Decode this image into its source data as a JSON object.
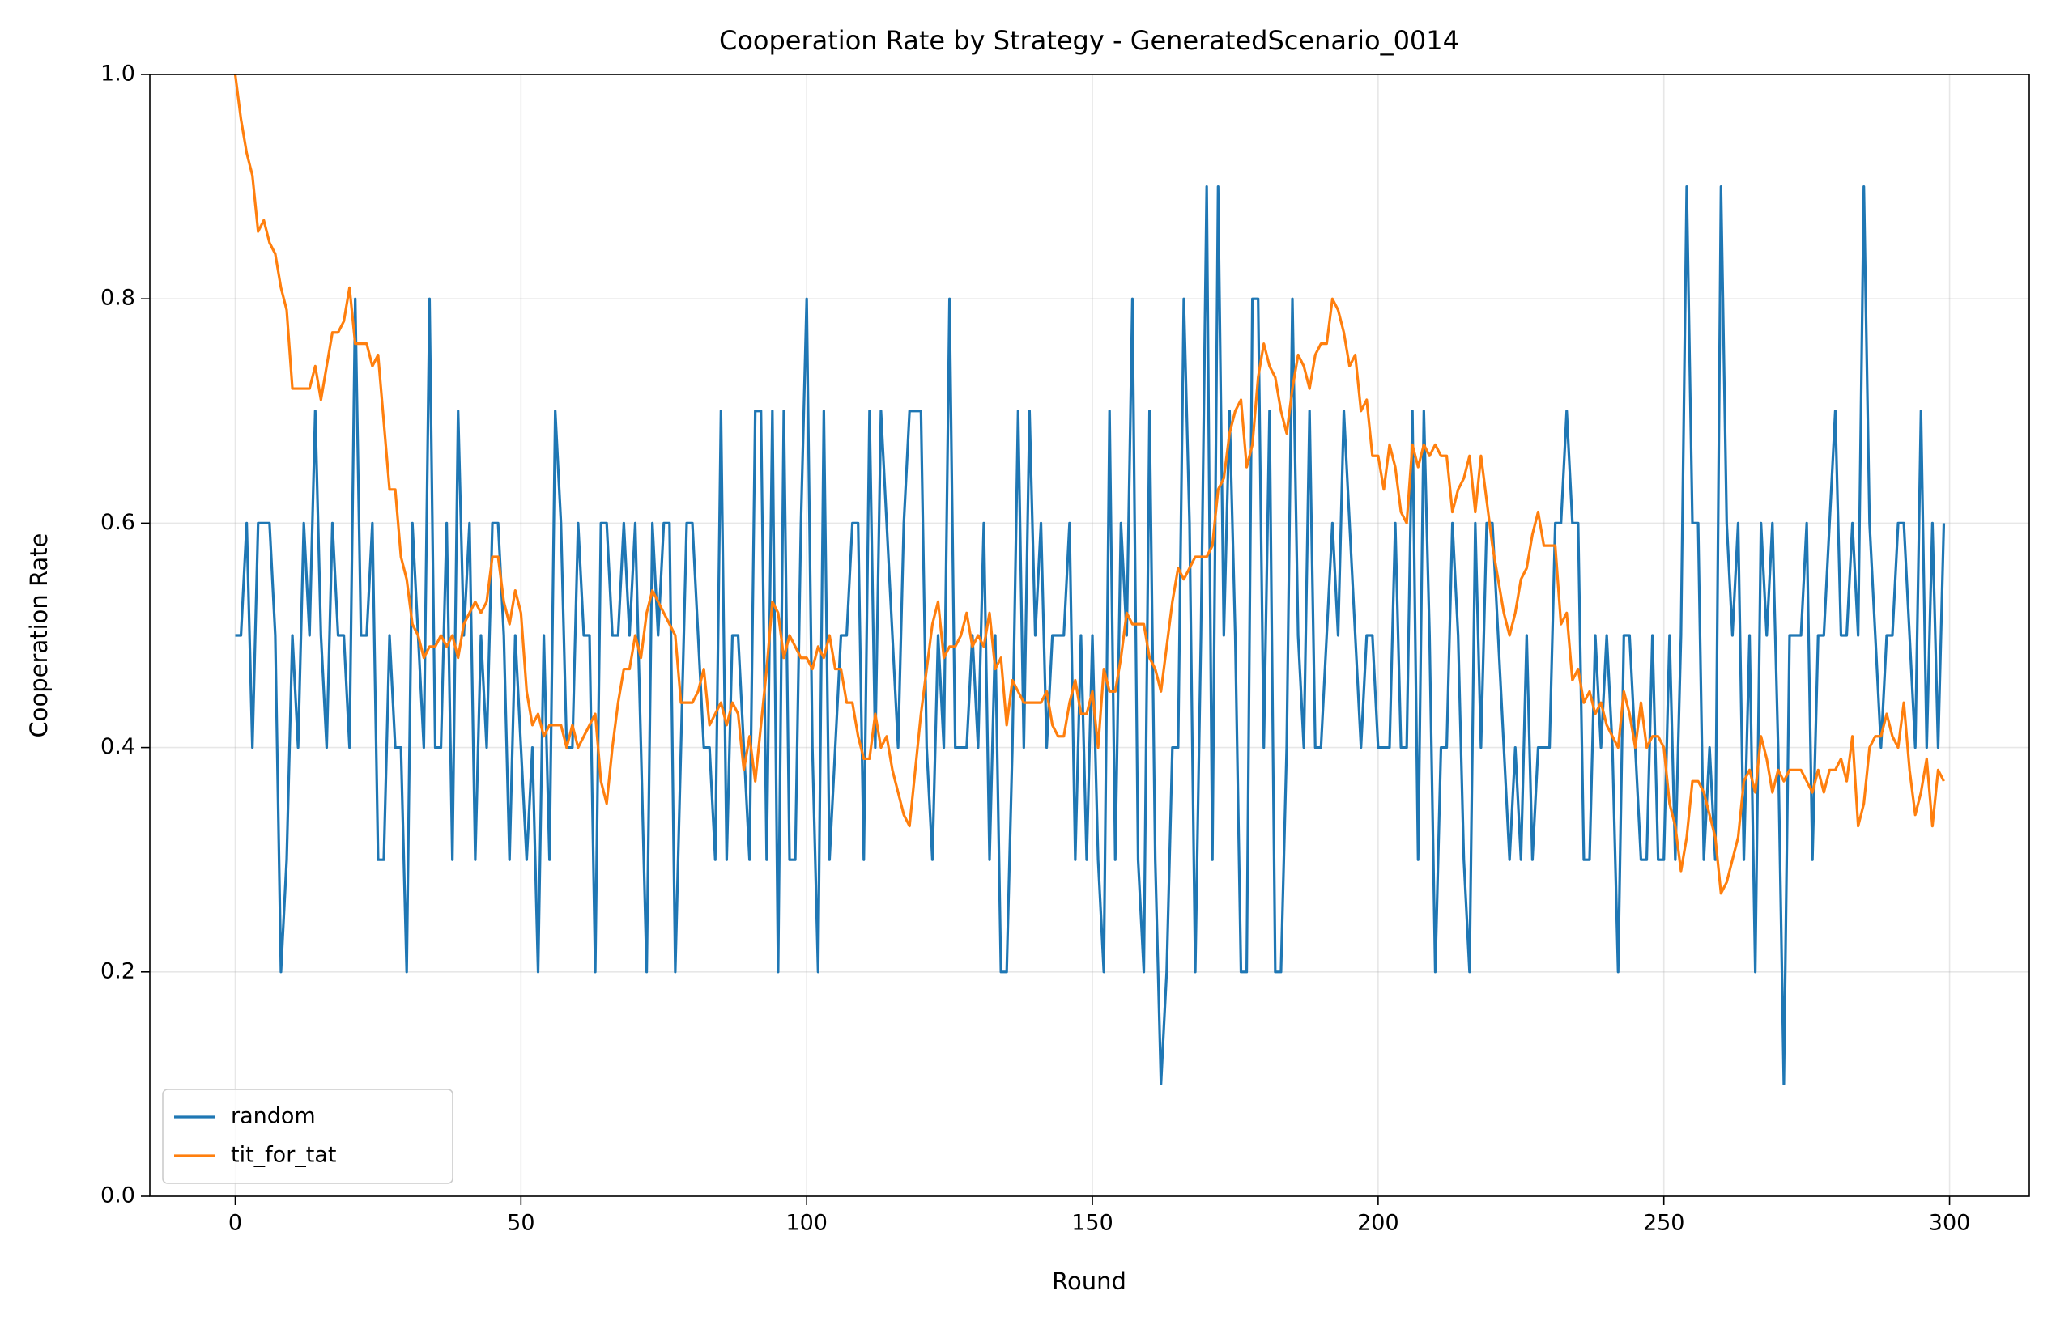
{
  "chart_data": {
    "type": "line",
    "title": "Cooperation Rate by Strategy - GeneratedScenario_0014",
    "x_label": "Round",
    "y_label": "Cooperation Rate",
    "xlim": [
      -14.95,
      313.95
    ],
    "ylim": [
      0,
      1
    ],
    "xticks": [
      0,
      50,
      100,
      150,
      200,
      250,
      300
    ],
    "yticks": [
      {
        "value": 0,
        "label": "0.0"
      },
      {
        "value": 0.2,
        "label": "0.2"
      },
      {
        "value": 0.4,
        "label": "0.4"
      },
      {
        "value": 0.6,
        "label": "0.6"
      },
      {
        "value": 0.8,
        "label": "0.8"
      },
      {
        "value": 1,
        "label": "1.0"
      }
    ],
    "grid": true,
    "legend": "lower left",
    "x": [
      0,
      1,
      2,
      3,
      4,
      5,
      6,
      7,
      8,
      9,
      10,
      11,
      12,
      13,
      14,
      15,
      16,
      17,
      18,
      19,
      20,
      21,
      22,
      23,
      24,
      25,
      26,
      27,
      28,
      29,
      30,
      31,
      32,
      33,
      34,
      35,
      36,
      37,
      38,
      39,
      40,
      41,
      42,
      43,
      44,
      45,
      46,
      47,
      48,
      49,
      50,
      51,
      52,
      53,
      54,
      55,
      56,
      57,
      58,
      59,
      60,
      61,
      62,
      63,
      64,
      65,
      66,
      67,
      68,
      69,
      70,
      71,
      72,
      73,
      74,
      75,
      76,
      77,
      78,
      79,
      80,
      81,
      82,
      83,
      84,
      85,
      86,
      87,
      88,
      89,
      90,
      91,
      92,
      93,
      94,
      95,
      96,
      97,
      98,
      99,
      100,
      101,
      102,
      103,
      104,
      105,
      106,
      107,
      108,
      109,
      110,
      111,
      112,
      113,
      114,
      115,
      116,
      117,
      118,
      119,
      120,
      121,
      122,
      123,
      124,
      125,
      126,
      127,
      128,
      129,
      130,
      131,
      132,
      133,
      134,
      135,
      136,
      137,
      138,
      139,
      140,
      141,
      142,
      143,
      144,
      145,
      146,
      147,
      148,
      149,
      150,
      151,
      152,
      153,
      154,
      155,
      156,
      157,
      158,
      159,
      160,
      161,
      162,
      163,
      164,
      165,
      166,
      167,
      168,
      169,
      170,
      171,
      172,
      173,
      174,
      175,
      176,
      177,
      178,
      179,
      180,
      181,
      182,
      183,
      184,
      185,
      186,
      187,
      188,
      189,
      190,
      191,
      192,
      193,
      194,
      195,
      196,
      197,
      198,
      199,
      200,
      201,
      202,
      203,
      204,
      205,
      206,
      207,
      208,
      209,
      210,
      211,
      212,
      213,
      214,
      215,
      216,
      217,
      218,
      219,
      220,
      221,
      222,
      223,
      224,
      225,
      226,
      227,
      228,
      229,
      230,
      231,
      232,
      233,
      234,
      235,
      236,
      237,
      238,
      239,
      240,
      241,
      242,
      243,
      244,
      245,
      246,
      247,
      248,
      249,
      250,
      251,
      252,
      253,
      254,
      255,
      256,
      257,
      258,
      259,
      260,
      261,
      262,
      263,
      264,
      265,
      266,
      267,
      268,
      269,
      270,
      271,
      272,
      273,
      274,
      275,
      276,
      277,
      278,
      279,
      280,
      281,
      282,
      283,
      284,
      285,
      286,
      287,
      288,
      289,
      290,
      291,
      292,
      293,
      294,
      295,
      296,
      297,
      298,
      299
    ],
    "series": [
      {
        "name": "random",
        "color": "#1f77b4",
        "values": [
          0.5,
          0.5,
          0.6,
          0.4,
          0.6,
          0.6,
          0.6,
          0.5,
          0.2,
          0.3,
          0.5,
          0.4,
          0.6,
          0.5,
          0.7,
          0.5,
          0.4,
          0.6,
          0.5,
          0.5,
          0.4,
          0.8,
          0.5,
          0.5,
          0.6,
          0.3,
          0.3,
          0.5,
          0.4,
          0.4,
          0.2,
          0.6,
          0.5,
          0.4,
          0.8,
          0.4,
          0.4,
          0.6,
          0.3,
          0.7,
          0.5,
          0.6,
          0.3,
          0.5,
          0.4,
          0.6,
          0.6,
          0.5,
          0.3,
          0.5,
          0.4,
          0.3,
          0.4,
          0.2,
          0.5,
          0.3,
          0.7,
          0.6,
          0.4,
          0.4,
          0.6,
          0.5,
          0.5,
          0.2,
          0.6,
          0.6,
          0.5,
          0.5,
          0.6,
          0.5,
          0.6,
          0.4,
          0.2,
          0.6,
          0.5,
          0.6,
          0.6,
          0.2,
          0.4,
          0.6,
          0.6,
          0.5,
          0.4,
          0.4,
          0.3,
          0.7,
          0.3,
          0.5,
          0.5,
          0.4,
          0.3,
          0.7,
          0.7,
          0.3,
          0.7,
          0.2,
          0.7,
          0.3,
          0.3,
          0.6,
          0.8,
          0.4,
          0.2,
          0.7,
          0.3,
          0.4,
          0.5,
          0.5,
          0.6,
          0.6,
          0.3,
          0.7,
          0.4,
          0.7,
          0.6,
          0.5,
          0.4,
          0.6,
          0.7,
          0.7,
          0.7,
          0.4,
          0.3,
          0.5,
          0.4,
          0.8,
          0.4,
          0.4,
          0.4,
          0.5,
          0.4,
          0.6,
          0.3,
          0.5,
          0.2,
          0.2,
          0.4,
          0.7,
          0.4,
          0.7,
          0.5,
          0.6,
          0.4,
          0.5,
          0.5,
          0.5,
          0.6,
          0.3,
          0.5,
          0.3,
          0.5,
          0.3,
          0.2,
          0.7,
          0.3,
          0.6,
          0.5,
          0.8,
          0.3,
          0.2,
          0.7,
          0.3,
          0.1,
          0.2,
          0.4,
          0.4,
          0.8,
          0.6,
          0.2,
          0.5,
          0.9,
          0.3,
          0.9,
          0.5,
          0.7,
          0.5,
          0.2,
          0.2,
          0.8,
          0.8,
          0.4,
          0.7,
          0.2,
          0.2,
          0.4,
          0.8,
          0.5,
          0.4,
          0.7,
          0.4,
          0.4,
          0.5,
          0.6,
          0.5,
          0.7,
          0.6,
          0.5,
          0.4,
          0.5,
          0.5,
          0.4,
          0.4,
          0.4,
          0.6,
          0.4,
          0.4,
          0.7,
          0.3,
          0.7,
          0.5,
          0.2,
          0.4,
          0.4,
          0.6,
          0.5,
          0.3,
          0.2,
          0.6,
          0.4,
          0.6,
          0.6,
          0.5,
          0.4,
          0.3,
          0.4,
          0.3,
          0.5,
          0.3,
          0.4,
          0.4,
          0.4,
          0.6,
          0.6,
          0.7,
          0.6,
          0.6,
          0.3,
          0.3,
          0.5,
          0.4,
          0.5,
          0.4,
          0.2,
          0.5,
          0.5,
          0.4,
          0.3,
          0.3,
          0.5,
          0.3,
          0.3,
          0.5,
          0.3,
          0.5,
          0.9,
          0.6,
          0.6,
          0.3,
          0.4,
          0.3,
          0.9,
          0.6,
          0.5,
          0.6,
          0.3,
          0.5,
          0.2,
          0.6,
          0.5,
          0.6,
          0.4,
          0.1,
          0.5,
          0.5,
          0.5,
          0.6,
          0.3,
          0.5,
          0.5,
          0.6,
          0.7,
          0.5,
          0.5,
          0.6,
          0.5,
          0.9,
          0.6,
          0.5,
          0.4,
          0.5,
          0.5,
          0.6,
          0.6,
          0.5,
          0.4,
          0.7,
          0.4,
          0.6,
          0.4,
          0.6
        ]
      },
      {
        "name": "tit_for_tat",
        "color": "#ff7f0e",
        "values": [
          1.0,
          0.96,
          0.93,
          0.91,
          0.86,
          0.87,
          0.85,
          0.84,
          0.81,
          0.79,
          0.72,
          0.72,
          0.72,
          0.72,
          0.74,
          0.71,
          0.74,
          0.77,
          0.77,
          0.78,
          0.81,
          0.76,
          0.76,
          0.76,
          0.74,
          0.75,
          0.69,
          0.63,
          0.63,
          0.57,
          0.55,
          0.51,
          0.5,
          0.48,
          0.49,
          0.49,
          0.5,
          0.49,
          0.5,
          0.48,
          0.51,
          0.52,
          0.53,
          0.52,
          0.53,
          0.57,
          0.57,
          0.53,
          0.51,
          0.54,
          0.52,
          0.45,
          0.42,
          0.43,
          0.41,
          0.42,
          0.42,
          0.42,
          0.4,
          0.42,
          0.4,
          0.41,
          0.42,
          0.43,
          0.37,
          0.35,
          0.4,
          0.44,
          0.47,
          0.47,
          0.5,
          0.48,
          0.52,
          0.54,
          0.53,
          0.52,
          0.51,
          0.5,
          0.44,
          0.44,
          0.44,
          0.45,
          0.47,
          0.42,
          0.43,
          0.44,
          0.42,
          0.44,
          0.43,
          0.38,
          0.41,
          0.37,
          0.42,
          0.47,
          0.53,
          0.52,
          0.48,
          0.5,
          0.49,
          0.48,
          0.48,
          0.47,
          0.49,
          0.48,
          0.5,
          0.47,
          0.47,
          0.44,
          0.44,
          0.41,
          0.39,
          0.39,
          0.43,
          0.4,
          0.41,
          0.38,
          0.36,
          0.34,
          0.33,
          0.38,
          0.43,
          0.47,
          0.51,
          0.53,
          0.48,
          0.49,
          0.49,
          0.5,
          0.52,
          0.49,
          0.5,
          0.49,
          0.52,
          0.47,
          0.48,
          0.42,
          0.46,
          0.45,
          0.44,
          0.44,
          0.44,
          0.44,
          0.45,
          0.42,
          0.41,
          0.41,
          0.44,
          0.46,
          0.43,
          0.43,
          0.45,
          0.4,
          0.47,
          0.45,
          0.45,
          0.48,
          0.52,
          0.51,
          0.51,
          0.51,
          0.48,
          0.47,
          0.45,
          0.49,
          0.53,
          0.56,
          0.55,
          0.56,
          0.57,
          0.57,
          0.57,
          0.58,
          0.63,
          0.64,
          0.68,
          0.7,
          0.71,
          0.65,
          0.67,
          0.73,
          0.76,
          0.74,
          0.73,
          0.7,
          0.68,
          0.72,
          0.75,
          0.74,
          0.72,
          0.75,
          0.76,
          0.76,
          0.8,
          0.79,
          0.77,
          0.74,
          0.75,
          0.7,
          0.71,
          0.66,
          0.66,
          0.63,
          0.67,
          0.65,
          0.61,
          0.6,
          0.67,
          0.65,
          0.67,
          0.66,
          0.67,
          0.66,
          0.66,
          0.61,
          0.63,
          0.64,
          0.66,
          0.61,
          0.66,
          0.62,
          0.58,
          0.55,
          0.52,
          0.5,
          0.52,
          0.55,
          0.56,
          0.59,
          0.61,
          0.58,
          0.58,
          0.58,
          0.51,
          0.52,
          0.46,
          0.47,
          0.44,
          0.45,
          0.43,
          0.44,
          0.42,
          0.41,
          0.4,
          0.45,
          0.43,
          0.4,
          0.44,
          0.4,
          0.41,
          0.41,
          0.4,
          0.35,
          0.33,
          0.29,
          0.32,
          0.37,
          0.37,
          0.36,
          0.34,
          0.32,
          0.27,
          0.28,
          0.3,
          0.32,
          0.37,
          0.38,
          0.36,
          0.41,
          0.39,
          0.36,
          0.38,
          0.37,
          0.38,
          0.38,
          0.38,
          0.37,
          0.36,
          0.38,
          0.36,
          0.38,
          0.38,
          0.39,
          0.37,
          0.41,
          0.33,
          0.35,
          0.4,
          0.41,
          0.41,
          0.43,
          0.41,
          0.4,
          0.44,
          0.38,
          0.34,
          0.36,
          0.39,
          0.33,
          0.38,
          0.37
        ]
      }
    ]
  }
}
